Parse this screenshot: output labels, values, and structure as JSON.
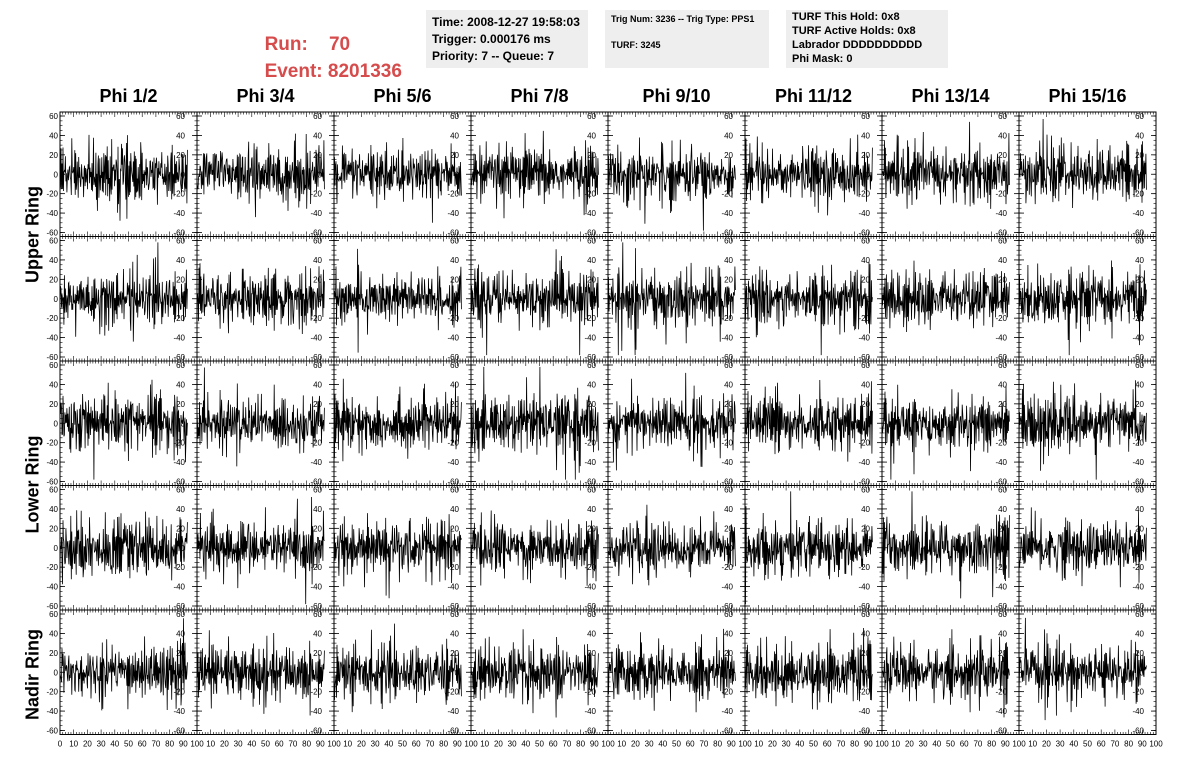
{
  "header": {
    "run_label": "Run:",
    "run_value": "70",
    "event_label": "Event:",
    "event_value": "8201336",
    "box1": [
      "Time: 2008-12-27 19:58:03",
      "Trigger: 0.000176 ms",
      "Priority: 7 -- Queue: 7"
    ],
    "box2": [
      "Trig Num: 3236 -- Trig Type: PPS1",
      "TURF: 3245"
    ],
    "box3": [
      "TURF This Hold: 0x8",
      "TURF Active Holds: 0x8",
      "Labrador DDDDDDDDDD",
      "Phi Mask: 0"
    ]
  },
  "colors": {
    "accent": "#d64b4b",
    "box_bg": "#eeeeee",
    "trace": "#000000"
  },
  "chart_data": {
    "type": "line",
    "columns": [
      "Phi 1/2",
      "Phi 3/4",
      "Phi 5/6",
      "Phi 7/8",
      "Phi 9/10",
      "Phi 11/12",
      "Phi 13/14",
      "Phi 15/16"
    ],
    "row_groups": [
      {
        "label": "Upper Ring",
        "rows": 2
      },
      {
        "label": "Lower Ring",
        "rows": 2
      },
      {
        "label": "Nadir Ring",
        "rows": 1
      }
    ],
    "rows": 5,
    "xlim": [
      0,
      100
    ],
    "ylim": [
      -60,
      60
    ],
    "x_ticks": [
      "0",
      "10",
      "20",
      "30",
      "40",
      "50",
      "60",
      "70",
      "80",
      "90",
      "100"
    ],
    "y_ticks": [
      "60",
      "40",
      "20",
      "0",
      "-20",
      "-40",
      "-60"
    ],
    "series_description": "noise-like waveform, amplitude roughly ±20 to ±50",
    "samples_per_trace": 260,
    "typical_amplitude": 18
  }
}
